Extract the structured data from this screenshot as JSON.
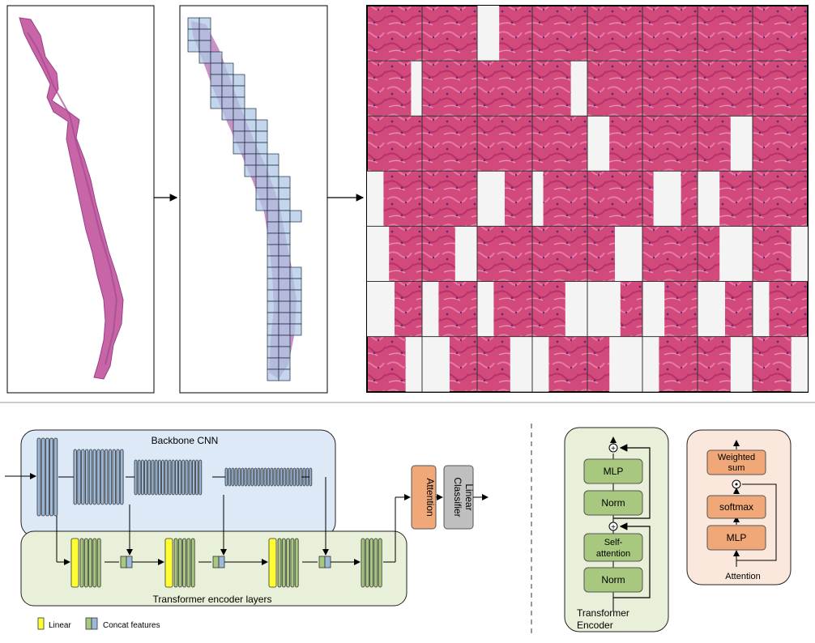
{
  "diagram": {
    "backbone_label": "Backbone CNN",
    "transformer_layers_label": "Transformer encoder layers",
    "attention_label": "Attention",
    "classifier_label_line1": "Linear",
    "classifier_label_line2": "Classifier",
    "legend": {
      "linear": "Linear",
      "concat": "Concat features"
    }
  },
  "encoder_block": {
    "mlp": "MLP",
    "norm_top": "Norm",
    "self_attention_line1": "Self-",
    "self_attention_line2": "attention",
    "norm_bottom": "Norm",
    "title_line1": "Transformer",
    "title_line2": "Encoder"
  },
  "attention_block": {
    "weighted_line1": "Weighted",
    "weighted_line2": "sum",
    "softmax": "softmax",
    "mlp": "MLP",
    "title": "Attention"
  },
  "colors": {
    "blue_panel": "#dde9f6",
    "green_panel": "#e8f0d9",
    "orange_panel": "#fbe8dc",
    "conv_blue": "#9cb9da",
    "linear_yellow": "#ffff33",
    "encoder_green": "#a8c880",
    "orange_box": "#f0a878",
    "gray_box": "#bfbfbf",
    "tissue_pink": "#d44a80",
    "tissue_purple": "#a862b4",
    "patch_blue": "#b0c8e4"
  }
}
